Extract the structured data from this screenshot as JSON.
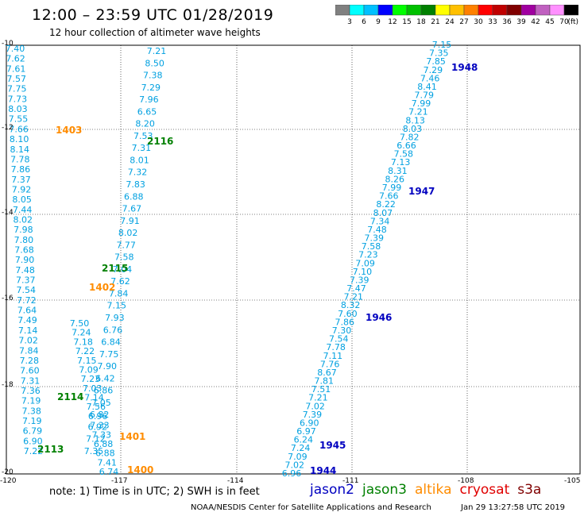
{
  "header": {
    "title": "12:00 – 23:59 UTC 01/28/2019",
    "subtitle": "12 hour collection of altimeter wave heights"
  },
  "legend": {
    "colors": [
      "#808080",
      "#00ffff",
      "#00c0ff",
      "#0000ff",
      "#00ff00",
      "#00c000",
      "#008000",
      "#ffff00",
      "#ffc000",
      "#ff8000",
      "#ff0000",
      "#c00000",
      "#800000",
      "#a000a0",
      "#c060c0",
      "#ff90ff",
      "#000000"
    ],
    "labels": [
      "3",
      "6",
      "9",
      "12",
      "15",
      "18",
      "21",
      "24",
      "27",
      "30",
      "33",
      "36",
      "39",
      "42",
      "45",
      "70"
    ],
    "unit": "(ft)"
  },
  "axes": {
    "lon_labels": [
      "-120",
      "-117",
      "-114",
      "-111",
      "-108",
      "-105"
    ],
    "lat_labels": [
      "-10",
      "-12",
      "-14",
      "-16",
      "-18",
      "-20"
    ]
  },
  "tracks": [
    {
      "id": "2113",
      "sat": "jason3",
      "values": [
        "7.22",
        "6.90",
        "6.79",
        "7.19",
        "7.38",
        "7.19",
        "7.36",
        "7.31",
        "7.60",
        "7.28",
        "7.84",
        "7.02",
        "7.14",
        "7.49",
        "7.64",
        "7.72",
        "7.54",
        "7.37",
        "7.48",
        "7.90",
        "7.68",
        "7.80",
        "7.98",
        "8.02",
        "7.44",
        "8.05",
        "7.92",
        "7.37",
        "7.86",
        "7.78",
        "8.14",
        "8.10",
        "7.66",
        "7.55",
        "8.03",
        "7.73",
        "7.75",
        "7.57",
        "7.61",
        "7.62",
        "7.40"
      ]
    },
    {
      "id": "2114",
      "sat": "jason3",
      "values": [
        "7.35",
        "7.12",
        "6.92",
        "6.82",
        "7.05",
        "6.86",
        "6.42",
        "7.90",
        "7.75",
        "6.84",
        "6.76",
        "7.93",
        "7.15",
        "7.84",
        "7.62",
        "7.04",
        "7.58",
        "7.77",
        "8.02",
        "7.91",
        "7.67",
        "6.88",
        "7.83",
        "7.32",
        "8.01",
        "7.31",
        "7.53",
        "8.20",
        "6.65",
        "7.96",
        "7.29",
        "7.38",
        "8.50",
        "7.21"
      ]
    },
    {
      "id": "1401",
      "sat": "altika",
      "values": [
        "6.74",
        "7.41",
        "6.88",
        "6.88",
        "7.33",
        "7.33",
        "6.96",
        "7.56",
        "7.14",
        "7.03",
        "7.23",
        "7.09",
        "7.15",
        "7.22",
        "7.18",
        "7.24",
        "7.50"
      ]
    },
    {
      "id": "1944",
      "sat": "jason2",
      "values": [
        "6.96",
        "7.02",
        "7.09",
        "7.24",
        "6.24",
        "6.97",
        "6.90",
        "7.39",
        "7.02",
        "7.21",
        "7.51",
        "7.81",
        "8.67",
        "7.76",
        "7.11",
        "7.78",
        "7.54",
        "7.30",
        "7.86",
        "7.60",
        "8.32",
        "7.21",
        "7.47",
        "7.39",
        "7.10",
        "7.09",
        "7.23",
        "7.58",
        "7.39",
        "7.48",
        "7.34",
        "8.07",
        "8.22",
        "7.66",
        "7.99",
        "8.26",
        "8.31",
        "7.13",
        "7.58",
        "6.66",
        "7.82",
        "8.03",
        "8.13",
        "7.21",
        "7.99",
        "7.79",
        "8.41",
        "7.46",
        "7.29",
        "7.85",
        "7.35",
        "7.15"
      ]
    }
  ],
  "track_labels": [
    {
      "text": "1403",
      "sat": "altika"
    },
    {
      "text": "2116",
      "sat": "jason3"
    },
    {
      "text": "2115",
      "sat": "jason3"
    },
    {
      "text": "1402",
      "sat": "altika"
    },
    {
      "text": "2114",
      "sat": "jason3"
    },
    {
      "text": "2113",
      "sat": "jason3"
    },
    {
      "text": "1401",
      "sat": "altika"
    },
    {
      "text": "1400",
      "sat": "altika"
    },
    {
      "text": "1948",
      "sat": "jason2"
    },
    {
      "text": "1947",
      "sat": "jason2"
    },
    {
      "text": "1946",
      "sat": "jason2"
    },
    {
      "text": "1945",
      "sat": "jason2"
    },
    {
      "text": "1944",
      "sat": "jason2"
    }
  ],
  "sat_colors": {
    "jason2": "#0000c0",
    "jason3": "#008000",
    "altika": "#ff8c00",
    "cryosat": "#e00000",
    "s3a": "#800000",
    "values": "#00a0e0"
  },
  "footer": {
    "note": "note:  1) Time is in UTC;  2) SWH is in feet",
    "satellites": [
      "jason2",
      "jason3",
      "altika",
      "cryosat",
      "s3a"
    ],
    "credit": "NOAA/NESDIS Center for Satellite Applications and Research",
    "timestamp": "Jan 29 13:27:58 UTC 2019"
  }
}
